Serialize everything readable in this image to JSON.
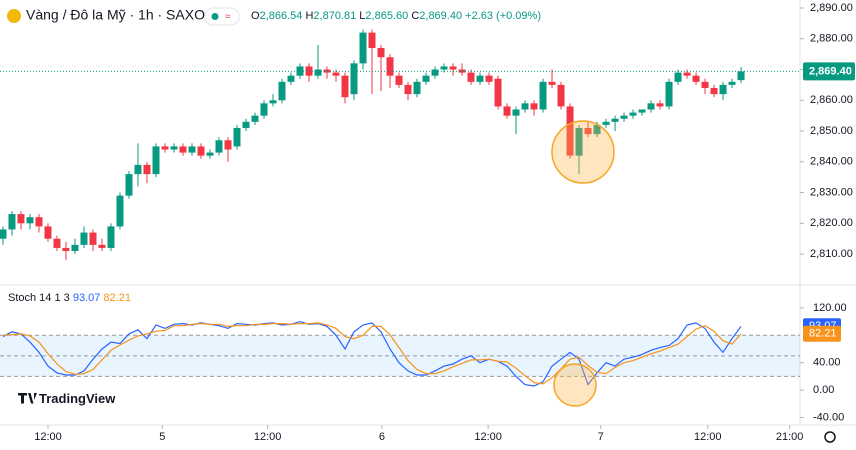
{
  "chart_data": [
    {
      "type": "candlestick",
      "title": "Vàng / Đô la Mỹ · 1h · SAXO",
      "ohlc_header": [
        [
          "O",
          "2,866.54"
        ],
        [
          "H",
          "2,870.81"
        ],
        [
          "L",
          "2,865.60"
        ],
        [
          "C",
          "2,869.40"
        ]
      ],
      "change": "+2.63 (+0.09%)",
      "up_color": "#089981",
      "down_color": "#f23645",
      "xlim": [
        -0.33,
        88.55
      ],
      "ylim": [
        2800.6,
        2892.6
      ],
      "yticks": [
        {
          "value": 2810,
          "label": "2,810.00"
        },
        {
          "value": 2820,
          "label": "2,820.00"
        },
        {
          "value": 2830,
          "label": "2,830.00"
        },
        {
          "value": 2840,
          "label": "2,840.00"
        },
        {
          "value": 2850,
          "label": "2,850.00"
        },
        {
          "value": 2860,
          "label": "2,860.00"
        },
        {
          "value": 2870,
          "label": "2,870.00"
        },
        {
          "value": 2880,
          "label": "2,880.00"
        },
        {
          "value": 2890,
          "label": "2,890.00"
        }
      ],
      "last_price": {
        "value": 2869.4,
        "label": "2,869.40"
      },
      "ohlc": [
        [
          2815,
          2819,
          2813,
          2818
        ],
        [
          2818,
          2824,
          2816,
          2823
        ],
        [
          2823,
          2824,
          2818,
          2820
        ],
        [
          2820,
          2823,
          2818,
          2822
        ],
        [
          2822,
          2823,
          2817,
          2819
        ],
        [
          2819,
          2820,
          2814,
          2815
        ],
        [
          2815,
          2816,
          2811,
          2812
        ],
        [
          2812,
          2814,
          2808,
          2811
        ],
        [
          2811,
          2815,
          2810,
          2813
        ],
        [
          2813,
          2819,
          2812,
          2817
        ],
        [
          2817,
          2818,
          2811,
          2813
        ],
        [
          2813,
          2815,
          2811,
          2812
        ],
        [
          2812,
          2820,
          2811,
          2819
        ],
        [
          2819,
          2830,
          2818,
          2829
        ],
        [
          2829,
          2837,
          2828,
          2836
        ],
        [
          2836,
          2846,
          2832,
          2839
        ],
        [
          2839,
          2840,
          2833,
          2836
        ],
        [
          2836,
          2846,
          2835,
          2845
        ],
        [
          2845,
          2846,
          2843,
          2844
        ],
        [
          2844,
          2846,
          2843,
          2845
        ],
        [
          2845,
          2846,
          2842,
          2843
        ],
        [
          2843,
          2846,
          2842,
          2845
        ],
        [
          2845,
          2846,
          2841,
          2842
        ],
        [
          2842,
          2844,
          2841,
          2843
        ],
        [
          2843,
          2848,
          2842,
          2847
        ],
        [
          2847,
          2848,
          2840,
          2844
        ],
        [
          2845,
          2852,
          2844,
          2851
        ],
        [
          2851,
          2854,
          2850,
          2853
        ],
        [
          2853,
          2856,
          2852,
          2855
        ],
        [
          2855,
          2860,
          2854,
          2859
        ],
        [
          2859,
          2862,
          2858,
          2860
        ],
        [
          2860,
          2867,
          2859,
          2866
        ],
        [
          2866,
          2869,
          2865,
          2868
        ],
        [
          2868,
          2872,
          2867,
          2871
        ],
        [
          2871,
          2872,
          2866,
          2868
        ],
        [
          2868,
          2878,
          2867,
          2870
        ],
        [
          2870,
          2871,
          2867,
          2869
        ],
        [
          2869,
          2870,
          2866,
          2868
        ],
        [
          2868,
          2869,
          2859,
          2861
        ],
        [
          2862,
          2873,
          2860,
          2872
        ],
        [
          2872,
          2883,
          2870,
          2882
        ],
        [
          2882,
          2883,
          2862,
          2877
        ],
        [
          2877,
          2878,
          2863,
          2874
        ],
        [
          2874,
          2875,
          2864,
          2868
        ],
        [
          2868,
          2869,
          2864,
          2865
        ],
        [
          2865,
          2866,
          2860,
          2862
        ],
        [
          2862,
          2867,
          2861,
          2866
        ],
        [
          2866,
          2869,
          2865,
          2868
        ],
        [
          2868,
          2871,
          2867,
          2870
        ],
        [
          2870,
          2872,
          2869,
          2871
        ],
        [
          2871,
          2872,
          2868,
          2870
        ],
        [
          2870,
          2872,
          2868,
          2869
        ],
        [
          2869,
          2870,
          2865,
          2866
        ],
        [
          2866,
          2869,
          2865,
          2868
        ],
        [
          2868,
          2869,
          2865,
          2866
        ],
        [
          2867,
          2868,
          2857,
          2858
        ],
        [
          2858,
          2859,
          2854,
          2855
        ],
        [
          2855,
          2858,
          2849,
          2857
        ],
        [
          2857,
          2860,
          2856,
          2859
        ],
        [
          2859,
          2860,
          2855,
          2857
        ],
        [
          2857,
          2867,
          2856,
          2866
        ],
        [
          2866,
          2870,
          2864,
          2865
        ],
        [
          2865,
          2866,
          2857,
          2858
        ],
        [
          2858,
          2859,
          2841,
          2842
        ],
        [
          2842,
          2852,
          2836,
          2851
        ],
        [
          2851,
          2853,
          2848,
          2849
        ],
        [
          2849,
          2853,
          2848,
          2852
        ],
        [
          2852,
          2854,
          2851,
          2853
        ],
        [
          2853,
          2855,
          2850,
          2854
        ],
        [
          2854,
          2856,
          2853,
          2855
        ],
        [
          2855,
          2857,
          2854,
          2856
        ],
        [
          2856,
          2857,
          2855,
          2857
        ],
        [
          2857,
          2860,
          2856,
          2859
        ],
        [
          2859,
          2860,
          2857,
          2858
        ],
        [
          2858,
          2867,
          2857,
          2866
        ],
        [
          2866,
          2870,
          2865,
          2869
        ],
        [
          2869,
          2870,
          2867,
          2868
        ],
        [
          2868,
          2869,
          2865,
          2866
        ],
        [
          2866,
          2867,
          2862,
          2864
        ],
        [
          2864,
          2865,
          2861,
          2862
        ],
        [
          2862,
          2866,
          2860,
          2865
        ],
        [
          2865,
          2867,
          2864,
          2866
        ],
        [
          2866.54,
          2870.81,
          2865.6,
          2869.4
        ]
      ]
    },
    {
      "type": "line",
      "title": "Stoch 14 1 3",
      "xlim": [
        -0.33,
        88.55
      ],
      "xticks": [
        {
          "value": 5,
          "label": "12:00"
        },
        {
          "value": 17.7,
          "label": "5"
        },
        {
          "value": 29.4,
          "label": "12:00"
        },
        {
          "value": 42.1,
          "label": "6"
        },
        {
          "value": 53.9,
          "label": "12:00"
        },
        {
          "value": 66.4,
          "label": "7"
        },
        {
          "value": 78.3,
          "label": "12:00"
        },
        {
          "value": 87.4,
          "label": "21:00"
        }
      ],
      "ylim": [
        -51,
        149
      ],
      "yticks": [
        {
          "value": 120,
          "label": "120.00"
        },
        {
          "value": 40,
          "label": "40.00"
        },
        {
          "value": 0,
          "label": "0.00"
        },
        {
          "value": -40,
          "label": "-40.00"
        }
      ],
      "band": {
        "upper": 80,
        "middle": 50,
        "lower": 20
      },
      "series": [
        {
          "color": "#2962ff",
          "last_label": "93.07",
          "values": [
            78,
            85,
            82,
            70,
            55,
            35,
            25,
            22,
            22,
            28,
            45,
            60,
            70,
            68,
            82,
            88,
            75,
            95,
            90,
            96,
            97,
            95,
            98,
            96,
            94,
            90,
            97,
            96,
            95,
            97,
            98,
            95,
            96,
            100,
            96,
            97,
            93,
            80,
            60,
            85,
            95,
            98,
            85,
            60,
            40,
            28,
            22,
            22,
            28,
            35,
            38,
            45,
            50,
            40,
            45,
            42,
            35,
            20,
            8,
            6,
            12,
            35,
            45,
            55,
            45,
            8,
            25,
            40,
            35,
            45,
            48,
            52,
            58,
            62,
            65,
            75,
            95,
            98,
            90,
            70,
            55,
            75,
            93.07
          ]
        },
        {
          "color": "#f7931a",
          "last_label": "82.21",
          "values": [
            80,
            81,
            82,
            79,
            70,
            53,
            38,
            27,
            23,
            24,
            30,
            44,
            58,
            66,
            73,
            79,
            82,
            86,
            87,
            94,
            94,
            96,
            97,
            96,
            96,
            93,
            94,
            94,
            96,
            96,
            97,
            97,
            96,
            97,
            97,
            98,
            95,
            90,
            78,
            75,
            80,
            93,
            93,
            81,
            62,
            43,
            30,
            24,
            24,
            28,
            34,
            39,
            44,
            44,
            45,
            42,
            41,
            32,
            21,
            11,
            9,
            18,
            31,
            45,
            48,
            36,
            26,
            24,
            33,
            40,
            43,
            48,
            53,
            57,
            62,
            67,
            78,
            89,
            94,
            86,
            72,
            67,
            82.21
          ]
        }
      ]
    }
  ],
  "watermark": "TradingView"
}
